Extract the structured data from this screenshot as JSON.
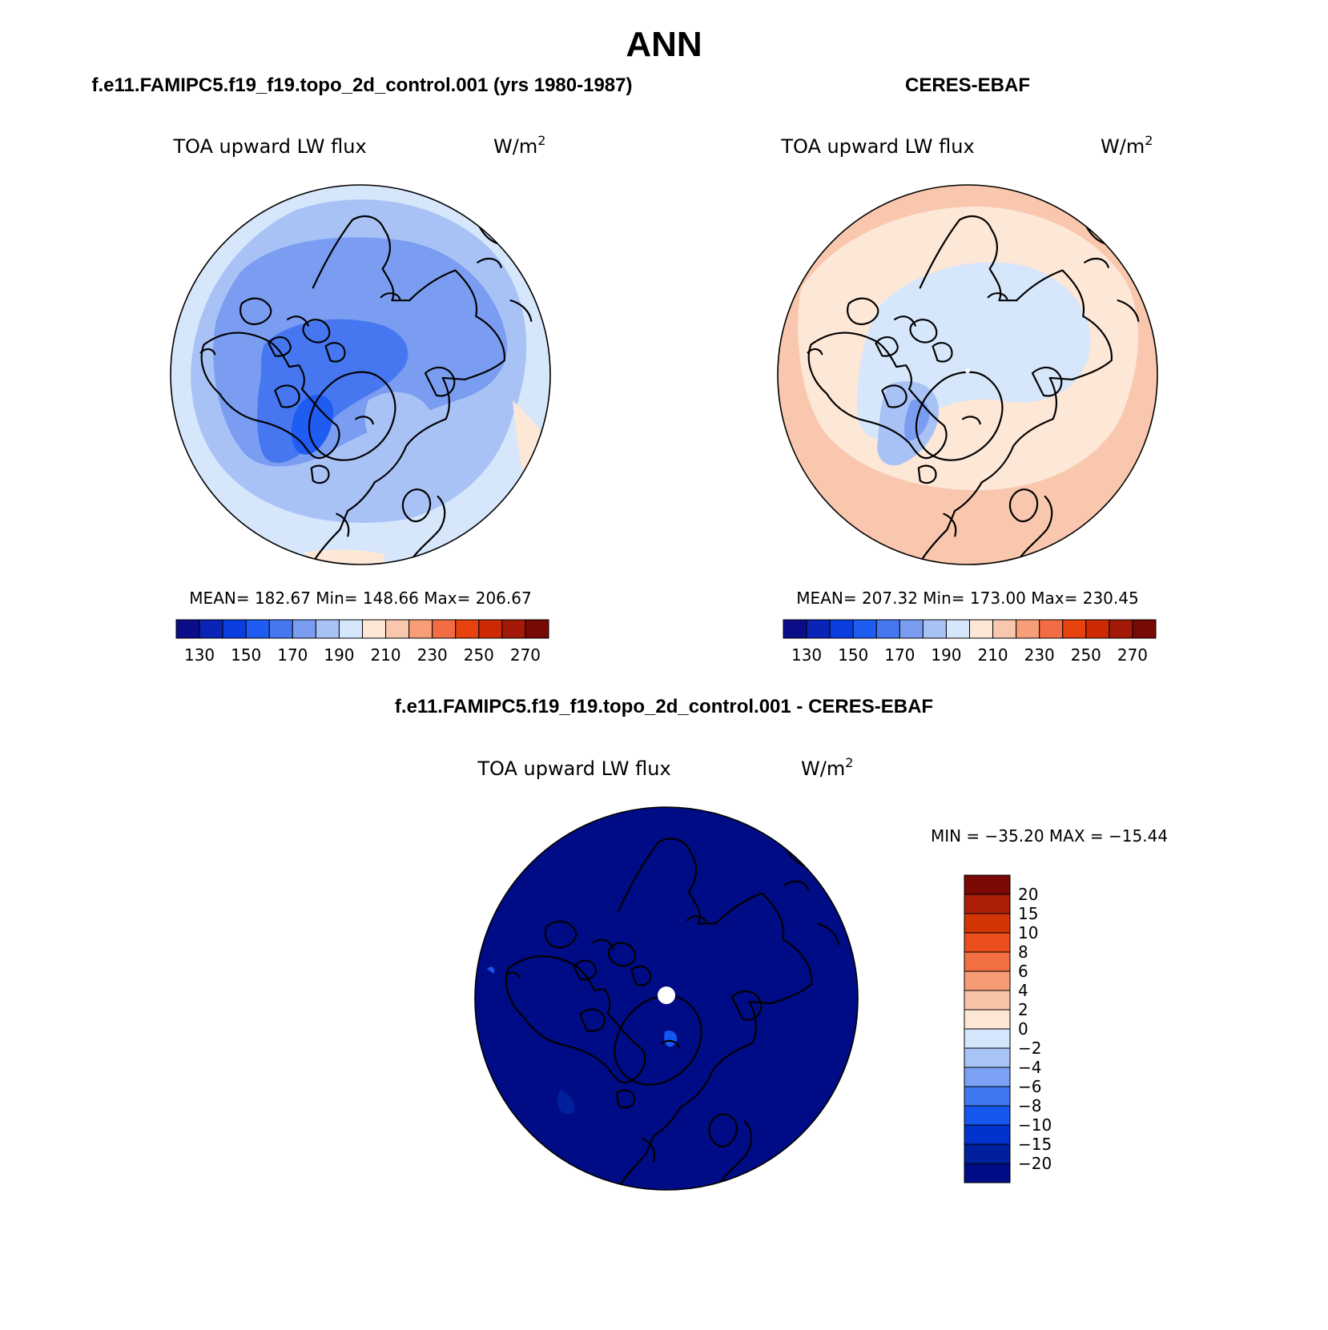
{
  "figure": {
    "title": "ANN",
    "colors": {
      "main_scale": [
        "#0b0d8a",
        "#0a24b8",
        "#0b3ee0",
        "#1f5cf2",
        "#4677f0",
        "#7a9df2",
        "#a9c2f6",
        "#d6e6fb",
        "#fde7d7",
        "#f9c7ad",
        "#f79e78",
        "#f36d44",
        "#e8420f",
        "#cc2a05",
        "#a31b08",
        "#780a04"
      ],
      "diff_scale": [
        "#000c86",
        "#00209e",
        "#0032cc",
        "#1456ee",
        "#3f78f0",
        "#7aa1f4",
        "#a8c4f6",
        "#d4e6fc",
        "#fde6d4",
        "#f8c4a8",
        "#f59b76",
        "#f26f42",
        "#eb4f1c",
        "#d33505",
        "#ac1f06",
        "#7a0804"
      ]
    }
  },
  "panels": [
    {
      "id": "model",
      "header": "f.e11.FAMIPC5.f19_f19.topo_2d_control.001 (yrs 1980-1987)",
      "variable": "TOA upward LW flux",
      "units": "W/m",
      "units_exp": "2",
      "stats": {
        "mean_label": "MEAN=",
        "mean": "182.67",
        "min_label": "Min=",
        "min": "148.66",
        "max_label": "Max=",
        "max": "206.67"
      },
      "colorbar": {
        "tick_labels": [
          "130",
          "150",
          "170",
          "190",
          "210",
          "230",
          "250",
          "270"
        ]
      }
    },
    {
      "id": "obs",
      "header": "CERES-EBAF",
      "variable": "TOA upward LW flux",
      "units": "W/m",
      "units_exp": "2",
      "stats": {
        "mean_label": "MEAN=",
        "mean": "207.32",
        "min_label": "Min=",
        "min": "173.00",
        "max_label": "Max=",
        "max": "230.45"
      },
      "colorbar": {
        "tick_labels": [
          "130",
          "150",
          "170",
          "190",
          "210",
          "230",
          "250",
          "270"
        ]
      }
    },
    {
      "id": "diff",
      "header": "f.e11.FAMIPC5.f19_f19.topo_2d_control.001 - CERES-EBAF",
      "variable": "TOA upward LW flux",
      "units": "W/m",
      "units_exp": "2",
      "minmax": "MIN = −35.20 MAX = −15.44",
      "colorbar": {
        "tick_labels": [
          "20",
          "15",
          "10",
          "8",
          "6",
          "4",
          "2",
          "0",
          "−2",
          "−4",
          "−6",
          "−8",
          "−10",
          "−15",
          "−20"
        ]
      }
    }
  ]
}
